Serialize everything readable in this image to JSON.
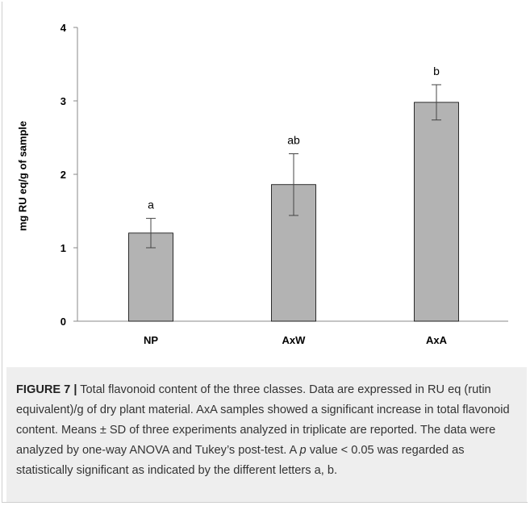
{
  "chart_data": {
    "type": "bar",
    "categories": [
      "NP",
      "AxW",
      "AxA"
    ],
    "values": [
      1.2,
      1.86,
      2.98
    ],
    "errors": [
      0.2,
      0.42,
      0.24
    ],
    "letters": [
      "a",
      "ab",
      "b"
    ],
    "ylabel": "mg RU eq/g of sample",
    "xlabel": "",
    "ylim": [
      0,
      4
    ],
    "yticks": [
      0,
      1,
      2,
      3,
      4
    ],
    "grid": false,
    "bar_color": "#b3b3b3"
  },
  "caption": {
    "label": "FIGURE 7 |",
    "text_before_p": " Total flavonoid content of the three classes. Data are expressed in RU eq (rutin equivalent)/g of dry plant material. AxA samples showed a significant increase in total flavonoid content. Means ± SD of three experiments analyzed in triplicate are reported. The data were analyzed by one-way ANOVA and Tukey’s post-test. A ",
    "p_symbol": "p",
    "text_after_p": " value < 0.05 was regarded as statistically significant as indicated by the different letters a, b."
  }
}
